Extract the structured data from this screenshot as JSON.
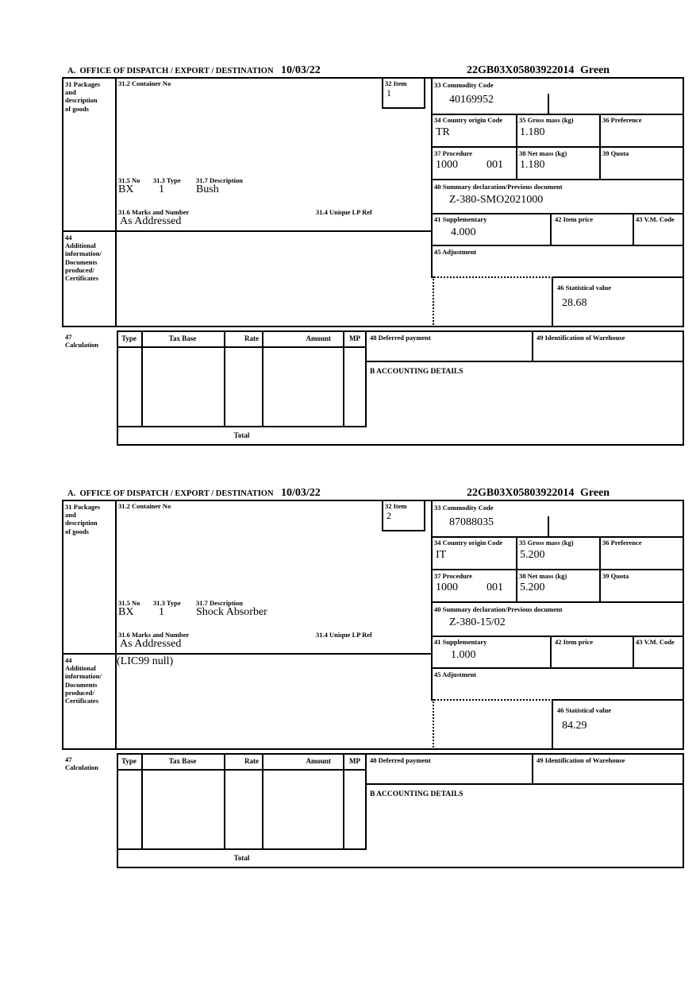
{
  "labels": {
    "office": "A.  OFFICE OF DISPATCH / EXPORT / DESTINATION",
    "box31_lines": [
      "31 Packages",
      "and",
      "description",
      "of goods"
    ],
    "box31_2": "31.2 Container No",
    "box32": "32 Item",
    "box33": "33 Commodity Code",
    "box34": "34 Country origin Code",
    "box35": "35 Gross mass (kg)",
    "box36": "36 Preference",
    "box37": "37 Procedure",
    "box38": "38 Net mass (kg)",
    "box39": "39 Quota",
    "box31_5": "31.5 No",
    "box31_3": "31.3 Type",
    "box31_7": "31.7 Description",
    "box31_6": "31.6 Marks and Number",
    "box31_4": "31.4 Unique LP Ref",
    "box40": "40 Summary declaration/Previous document",
    "box41": "41 Supplementary",
    "box42": "42 Item price",
    "box43": "43 V.M. Code",
    "box44_lines": [
      "44",
      "Additional",
      "information/",
      "Documents",
      "produced/",
      "Certificates"
    ],
    "box45": "45 Adjustment",
    "box46": "46 Statistical value",
    "box47_lines": [
      "47",
      "Calculation"
    ],
    "th": [
      "Type",
      "Tax Base",
      "Rate",
      "Amount",
      "MP"
    ],
    "box48": "48 Deferred payment",
    "box49": "49 Identification of Warehouse",
    "accounting": "B ACCOUNTING DETAILS",
    "total": "Total"
  },
  "sections": [
    {
      "date": "10/03/22",
      "reference": "22GB03X05803922014",
      "routing": "Green",
      "item_no": "1",
      "commodity_code": "40169952",
      "country_origin": "TR",
      "gross_mass": "1.180",
      "procedure": "1000",
      "procedure_extra": "001",
      "net_mass": "1.180",
      "package_no": "BX",
      "package_type": "1",
      "description": "Bush",
      "marks_and_number": "As Addressed",
      "summary_declaration": "Z-380-SMO2021000",
      "supplementary": "4.000",
      "additional_info": "",
      "statistical_value": "28.68"
    },
    {
      "date": "10/03/22",
      "reference": "22GB03X05803922014",
      "routing": "Green",
      "item_no": "2",
      "commodity_code": "87088035",
      "country_origin": "IT",
      "gross_mass": "5.200",
      "procedure": "1000",
      "procedure_extra": "001",
      "net_mass": "5.200",
      "package_no": "BX",
      "package_type": "1",
      "description": "Shock Absorber",
      "marks_and_number": "As Addressed",
      "summary_declaration": "Z-380-15/02",
      "supplementary": "1.000",
      "additional_info": "(LIC99 null)",
      "statistical_value": "84.29"
    }
  ]
}
